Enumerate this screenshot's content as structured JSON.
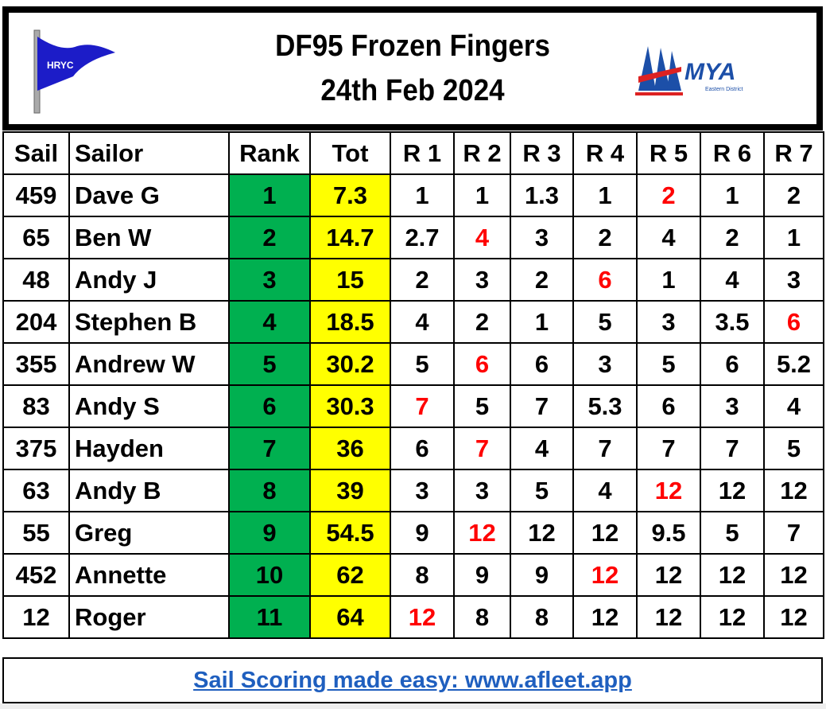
{
  "header": {
    "title_line1": "DF95 Frozen Fingers",
    "title_line2": "24th Feb 2024",
    "left_logo_text": "HRYC",
    "right_logo_text": "MYA",
    "right_logo_subtext": "Eastern District"
  },
  "table": {
    "columns": [
      "Sail",
      "Sailor",
      "Rank",
      "Tot",
      "R 1",
      "R 2",
      "R 3",
      "R 4",
      "R 5",
      "R 6",
      "R 7"
    ],
    "rows": [
      {
        "sail": "459",
        "sailor": "Dave G",
        "rank": "1",
        "tot": "7.3",
        "races": [
          "1",
          "1",
          "1.3",
          "1",
          "2",
          "1",
          "2"
        ],
        "discard": 4
      },
      {
        "sail": "65",
        "sailor": "Ben W",
        "rank": "2",
        "tot": "14.7",
        "races": [
          "2.7",
          "4",
          "3",
          "2",
          "4",
          "2",
          "1"
        ],
        "discard": 1
      },
      {
        "sail": "48",
        "sailor": "Andy J",
        "rank": "3",
        "tot": "15",
        "races": [
          "2",
          "3",
          "2",
          "6",
          "1",
          "4",
          "3"
        ],
        "discard": 3
      },
      {
        "sail": "204",
        "sailor": "Stephen B",
        "rank": "4",
        "tot": "18.5",
        "races": [
          "4",
          "2",
          "1",
          "5",
          "3",
          "3.5",
          "6"
        ],
        "discard": 6
      },
      {
        "sail": "355",
        "sailor": "Andrew W",
        "rank": "5",
        "tot": "30.2",
        "races": [
          "5",
          "6",
          "6",
          "3",
          "5",
          "6",
          "5.2"
        ],
        "discard": 1
      },
      {
        "sail": "83",
        "sailor": "Andy S",
        "rank": "6",
        "tot": "30.3",
        "races": [
          "7",
          "5",
          "7",
          "5.3",
          "6",
          "3",
          "4"
        ],
        "discard": 0
      },
      {
        "sail": "375",
        "sailor": "Hayden",
        "rank": "7",
        "tot": "36",
        "races": [
          "6",
          "7",
          "4",
          "7",
          "7",
          "7",
          "5"
        ],
        "discard": 1
      },
      {
        "sail": "63",
        "sailor": "Andy B",
        "rank": "8",
        "tot": "39",
        "races": [
          "3",
          "3",
          "5",
          "4",
          "12",
          "12",
          "12"
        ],
        "discard": 4
      },
      {
        "sail": "55",
        "sailor": "Greg",
        "rank": "9",
        "tot": "54.5",
        "races": [
          "9",
          "12",
          "12",
          "12",
          "9.5",
          "5",
          "7"
        ],
        "discard": 1
      },
      {
        "sail": "452",
        "sailor": "Annette",
        "rank": "10",
        "tot": "62",
        "races": [
          "8",
          "9",
          "9",
          "12",
          "12",
          "12",
          "12"
        ],
        "discard": 3
      },
      {
        "sail": "12",
        "sailor": "Roger",
        "rank": "11",
        "tot": "64",
        "races": [
          "12",
          "8",
          "8",
          "12",
          "12",
          "12",
          "12"
        ],
        "discard": 0
      }
    ]
  },
  "footer": {
    "link_text": "Sail Scoring made easy: www.afleet.app"
  },
  "colors": {
    "rank_bg": "#00b050",
    "tot_bg": "#ffff00",
    "discard_text": "#ff0000",
    "link": "#1f5fbf"
  }
}
